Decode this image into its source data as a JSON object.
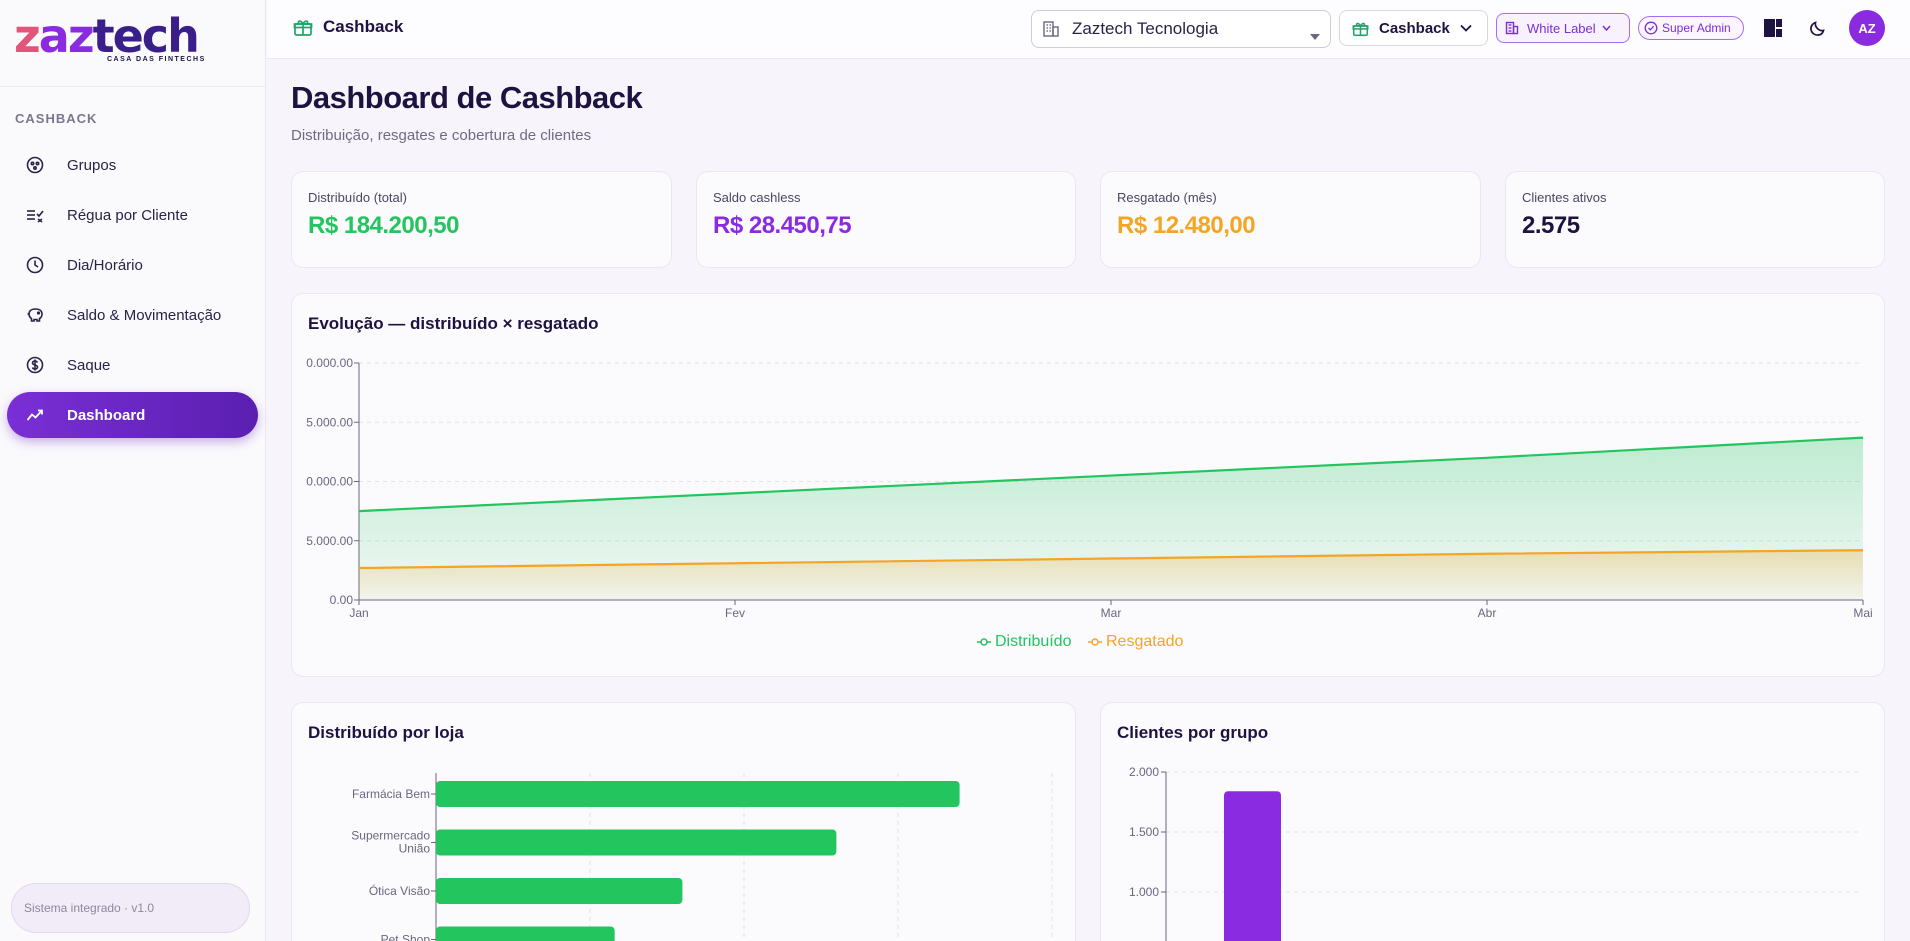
{
  "brand": {
    "logo_parts": [
      "z",
      "az",
      "tech"
    ],
    "tagline": "CASA DAS FINTECHS"
  },
  "sidebar": {
    "section_label": "CASHBACK",
    "items": [
      {
        "label": "Grupos",
        "icon": "groups-icon"
      },
      {
        "label": "Régua por Cliente",
        "icon": "list-check-icon"
      },
      {
        "label": "Dia/Horário",
        "icon": "clock-icon"
      },
      {
        "label": "Saldo & Movimentação",
        "icon": "piggy-bank-icon"
      },
      {
        "label": "Saque",
        "icon": "dollar-circle-icon"
      },
      {
        "label": "Dashboard",
        "icon": "trend-icon",
        "active": true
      }
    ],
    "system_badge": "Sistema integrado · v1.0"
  },
  "topbar": {
    "title": "Cashback",
    "company": "Zaztech Tecnologia",
    "module": "Cashback",
    "white_label": "White Label",
    "super_admin": "Super Admin",
    "avatar_initials": "AZ"
  },
  "page": {
    "title": "Dashboard de Cashback",
    "subtitle": "Distribuição, resgates e cobertura de clientes"
  },
  "kpis": [
    {
      "label": "Distribuído (total)",
      "value": "R$ 184.200,50",
      "color": "#22c55e"
    },
    {
      "label": "Saldo cashless",
      "value": "R$ 28.450,75",
      "color": "#8a2be2"
    },
    {
      "label": "Resgatado (mês)",
      "value": "R$ 12.480,00",
      "color": "#f5a524"
    },
    {
      "label": "Clientes ativos",
      "value": "2.575",
      "color": "#1e1340"
    }
  ],
  "colors": {
    "accent": "#8a2be2",
    "green": "#22c55e",
    "orange": "#f5a524"
  },
  "chart_data": [
    {
      "type": "area",
      "title": "Evolução — distribuído × resgatado",
      "categories": [
        "Jan",
        "Fev",
        "Mar",
        "Abr",
        "Mai"
      ],
      "y_tick_labels": [
        "0.00",
        "5.000.00",
        "0.000.00",
        "5.000.00",
        "0.000.00"
      ],
      "ylim": [
        0,
        20000
      ],
      "series": [
        {
          "name": "Distribuído",
          "color": "#22c55e",
          "values": [
            7500,
            9000,
            10500,
            12000,
            13700
          ]
        },
        {
          "name": "Resgatado",
          "color": "#f5a524",
          "values": [
            2700,
            3100,
            3500,
            3900,
            4200
          ]
        }
      ],
      "legend": "bottom-center",
      "grid": true
    },
    {
      "type": "bar",
      "orientation": "horizontal",
      "title": "Distribuído por loja",
      "categories": [
        "Farmácia Bem",
        "Supermercado União",
        "Ótica Visão",
        "Pet Shop"
      ],
      "values": [
        0.85,
        0.65,
        0.4,
        0.29
      ],
      "color": "#22c55e"
    },
    {
      "type": "bar",
      "title": "Clientes por grupo",
      "y_tick_labels": [
        "1.000",
        "1.500",
        "2.000"
      ],
      "ylim": [
        0,
        2000
      ],
      "values": [
        1840
      ],
      "color": "#8a2be2"
    }
  ]
}
